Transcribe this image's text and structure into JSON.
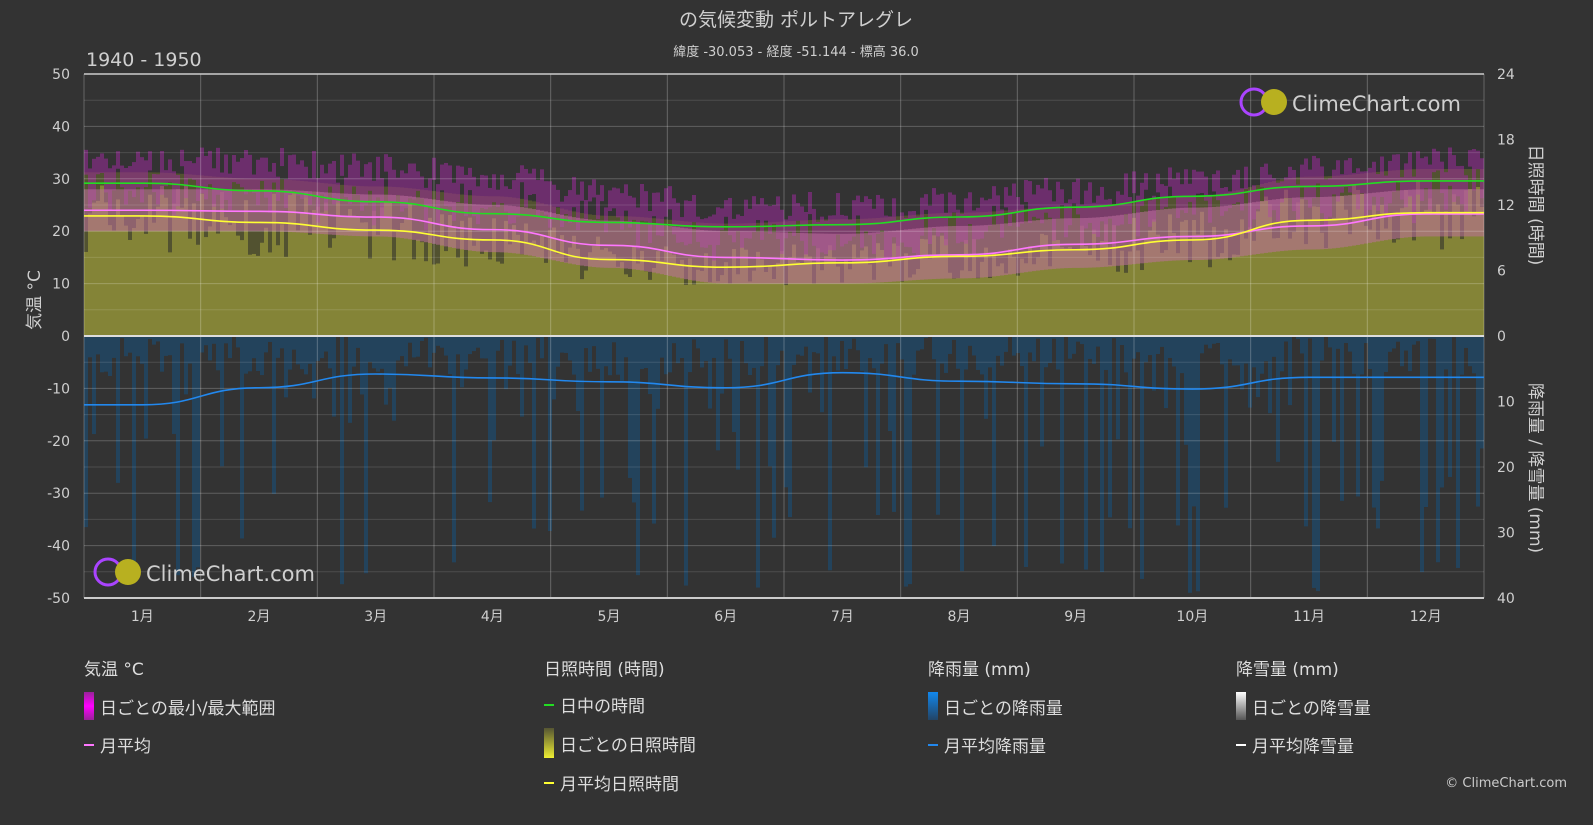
{
  "chart_data": {
    "type": "area",
    "title": "の気候変動 ポルトアレグレ",
    "subtitle": "緯度 -30.053 - 経度 -51.144 - 標高 36.0",
    "period": "1940 - 1950",
    "categories": [
      "1月",
      "2月",
      "3月",
      "4月",
      "5月",
      "6月",
      "7月",
      "8月",
      "9月",
      "10月",
      "11月",
      "12月"
    ],
    "left_axis": {
      "label": "気温 °C",
      "range": [
        -50,
        50
      ],
      "ticks": [
        50,
        40,
        30,
        20,
        10,
        0,
        -10,
        -20,
        -30,
        -40,
        -50
      ]
    },
    "right_axis_top": {
      "label": "日照時間 (時間)",
      "range": [
        0,
        24
      ],
      "ticks": [
        24,
        18,
        12,
        6,
        0
      ]
    },
    "right_axis_bottom": {
      "label": "降雨量 / 降雪量 (mm)",
      "range": [
        0,
        40
      ],
      "ticks": [
        0,
        10,
        20,
        30,
        40
      ]
    },
    "series": [
      {
        "name": "月平均",
        "unit": "°C",
        "color": "#ff77ff",
        "values": [
          24.0,
          23.8,
          22.7,
          20.3,
          17.3,
          15.0,
          14.5,
          15.5,
          17.5,
          19.0,
          21.0,
          23.3
        ]
      },
      {
        "name": "日ごとの最小/最大範囲 (max)",
        "unit": "°C",
        "color": "#cc33cc",
        "values": [
          28,
          28,
          27,
          25,
          22,
          20,
          19.5,
          21,
          22.5,
          24.5,
          26.5,
          28
        ]
      },
      {
        "name": "日ごとの最小/最大範囲 (min)",
        "unit": "°C",
        "color": "#cc33cc",
        "values": [
          20,
          20,
          19,
          16,
          13,
          10,
          10,
          11,
          13,
          14.5,
          16.5,
          19
        ]
      },
      {
        "name": "日中の時間",
        "unit": "h",
        "color": "#22dd22",
        "values": [
          14.0,
          13.3,
          12.3,
          11.2,
          10.4,
          10.0,
          10.2,
          10.9,
          11.8,
          12.8,
          13.7,
          14.2
        ]
      },
      {
        "name": "月平均日照時間",
        "unit": "h",
        "color": "#ffff33",
        "values": [
          11.0,
          10.4,
          9.7,
          8.8,
          7.0,
          6.3,
          6.7,
          7.3,
          7.9,
          8.8,
          10.6,
          11.3
        ]
      },
      {
        "name": "月平均降雨量",
        "unit": "mm",
        "color": "#2288ee",
        "values": [
          10.5,
          7.9,
          5.8,
          6.4,
          7.0,
          7.9,
          5.6,
          6.9,
          7.3,
          8.1,
          6.3,
          6.3
        ]
      },
      {
        "name": "月平均降雪量",
        "unit": "mm",
        "color": "#ffffff",
        "values": [
          0,
          0,
          0,
          0,
          0,
          0,
          0,
          0,
          0,
          0,
          0,
          0
        ]
      }
    ],
    "grid": true
  },
  "legend": {
    "temp": {
      "title": "気温 °C",
      "range": "日ごとの最小/最大範囲",
      "mean": "月平均"
    },
    "sun": {
      "title": "日照時間 (時間)",
      "daylight": "日中の時間",
      "daily": "日ごとの日照時間",
      "mean": "月平均日照時間"
    },
    "rain": {
      "title": "降雨量 (mm)",
      "daily": "日ごとの降雨量",
      "mean": "月平均降雨量"
    },
    "snow": {
      "title": "降雪量 (mm)",
      "daily": "日ごとの降雪量",
      "mean": "月平均降雪量"
    }
  },
  "watermark": "ClimeChart.com",
  "copyright": "© ClimeChart.com"
}
